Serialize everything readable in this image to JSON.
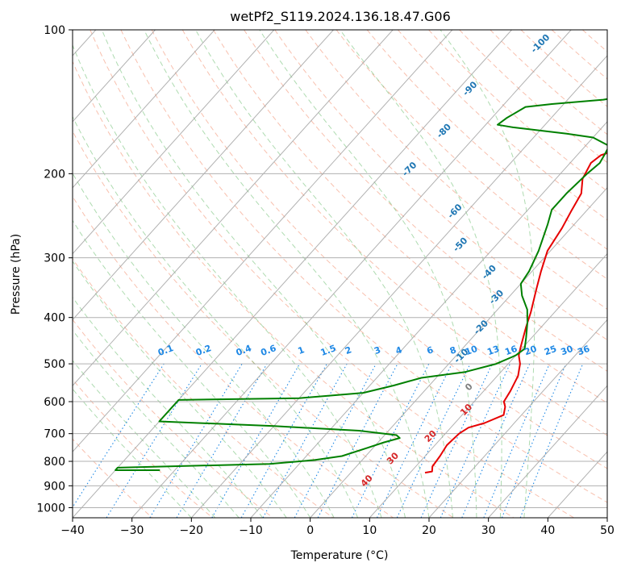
{
  "chart_data": {
    "type": "line",
    "title": "wetPf2_S119.2024.136.18.47.G06",
    "xlabel": "Temperature (°C)",
    "ylabel": "Pressure (hPa)",
    "xlim": [
      -40,
      50
    ],
    "ylim": [
      1050,
      100
    ],
    "y_scale": "log",
    "grid": true,
    "x_ticks": [
      -40,
      -30,
      -20,
      -10,
      0,
      10,
      20,
      30,
      40,
      50
    ],
    "y_ticks": [
      100,
      200,
      300,
      400,
      500,
      600,
      700,
      800,
      900,
      1000
    ],
    "colors": {
      "temperature": "#e60000",
      "dewpoint": "#008000",
      "dry_adiabat": "#f28c6b",
      "moist_adiabat": "#4caf50",
      "mixing_ratio": "#1e88e5",
      "isotherm_label": "#1f77b4",
      "isotherm_label_positive": "#d62728",
      "isotherm_label_zero": "#7f7f7f",
      "grid": "#b0b0b0"
    },
    "series": [
      {
        "key": "temperature",
        "points": [
          [
            12.5,
            845
          ],
          [
            13.5,
            840
          ],
          [
            12.8,
            820
          ],
          [
            12.5,
            780
          ],
          [
            12.0,
            740
          ],
          [
            12.3,
            700
          ],
          [
            13.0,
            680
          ],
          [
            15.0,
            665
          ],
          [
            17.0,
            640
          ],
          [
            16.0,
            615
          ],
          [
            15.0,
            600
          ],
          [
            14.5,
            570
          ],
          [
            13.5,
            530
          ],
          [
            12.0,
            500
          ],
          [
            10.5,
            480
          ],
          [
            9.5,
            460
          ],
          [
            7.5,
            420
          ],
          [
            6.0,
            390
          ],
          [
            3.5,
            350
          ],
          [
            1.5,
            320
          ],
          [
            -0.5,
            290
          ],
          [
            -1.5,
            260
          ],
          [
            -2.5,
            240
          ],
          [
            -3.5,
            220
          ],
          [
            -5.5,
            205
          ],
          [
            -6.5,
            190
          ],
          [
            -6.0,
            183
          ],
          [
            -4.0,
            178
          ],
          [
            0.0,
            172
          ],
          [
            4.0,
            165
          ],
          [
            7.0,
            155
          ],
          [
            9.0,
            145
          ],
          [
            10.5,
            135
          ],
          [
            13.0,
            128
          ],
          [
            15.5,
            120
          ],
          [
            18.0,
            112
          ],
          [
            20.0,
            105
          ],
          [
            21.0,
            100
          ]
        ]
      },
      {
        "key": "dewpoint",
        "points": [
          [
            -32.5,
            835
          ],
          [
            -40,
            835
          ],
          [
            -40,
            825
          ],
          [
            -15.0,
            810
          ],
          [
            -8.0,
            795
          ],
          [
            -4.0,
            780
          ],
          [
            -1.0,
            750
          ],
          [
            1.0,
            730
          ],
          [
            3.0,
            715
          ],
          [
            2.0,
            705
          ],
          [
            -5.0,
            690
          ],
          [
            -20.0,
            675
          ],
          [
            -40,
            660
          ],
          [
            -40,
            595
          ],
          [
            -20.0,
            590
          ],
          [
            -10.0,
            575
          ],
          [
            -6.0,
            555
          ],
          [
            -2.5,
            535
          ],
          [
            4.0,
            520
          ],
          [
            8.0,
            500
          ],
          [
            10.0,
            480
          ],
          [
            10.5,
            465
          ],
          [
            9.0,
            440
          ],
          [
            7.0,
            410
          ],
          [
            5.0,
            385
          ],
          [
            2.0,
            360
          ],
          [
            0.0,
            340
          ],
          [
            -0.5,
            320
          ],
          [
            -2.0,
            290
          ],
          [
            -4.5,
            255
          ],
          [
            -6.0,
            238
          ],
          [
            -6.0,
            220
          ],
          [
            -5.5,
            200
          ],
          [
            -5.0,
            190
          ],
          [
            -5.5,
            182
          ],
          [
            -6.0,
            175
          ],
          [
            -10.0,
            168
          ],
          [
            -15.0,
            165
          ],
          [
            -25.0,
            160
          ],
          [
            -28.0,
            158
          ],
          [
            -27.5,
            153
          ],
          [
            -26.0,
            145
          ],
          [
            -22.0,
            143
          ],
          [
            -14.0,
            140
          ],
          [
            -10.0,
            137
          ],
          [
            -8.0,
            130
          ],
          [
            -8.5,
            120
          ],
          [
            -8.0,
            112
          ],
          [
            -6.5,
            107
          ],
          [
            -4.5,
            103
          ],
          [
            -3.5,
            100
          ]
        ]
      }
    ],
    "isotherm_labels": [
      "-100",
      "-90",
      "-80",
      "-70",
      "-60",
      "-50",
      "-40",
      "-30",
      "-20",
      "-10",
      "0",
      "10",
      "20",
      "30",
      "40"
    ],
    "mixing_ratio_labels": [
      "0.1",
      "0.2",
      "0.4",
      "0.6",
      "1",
      "1.5",
      "2",
      "3",
      "4",
      "6",
      "8",
      "10",
      "13",
      "16",
      "20",
      "25",
      "30",
      "36"
    ]
  }
}
